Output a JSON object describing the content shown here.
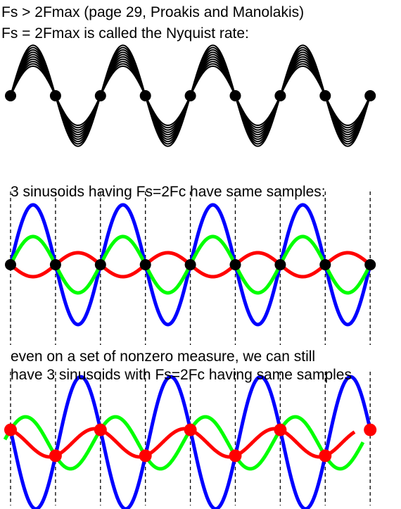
{
  "text": {
    "line1": "Fs > 2Fmax (page 29, Proakis and Manolakis)",
    "line2": "Fs = 2Fmax is called the Nyquist rate:",
    "caption2": "3 sinusoids having Fs=2Fc have same samples:",
    "caption3a": "even on a set of nonzero measure, we can still",
    "caption3b": "have 3 sinusoids with Fs=2Fc having same samples"
  },
  "colors": {
    "black": "#000000",
    "blue": "#0000ff",
    "green": "#00ff00",
    "red": "#ff0000",
    "background": "#ffffff"
  },
  "panels": {
    "nyquist_family": {
      "curve_count": 10,
      "sample_count": 9
    },
    "same_samples": {
      "sinusoids": [
        "blue",
        "green",
        "red"
      ],
      "sample_count": 9,
      "sample_lines": "dashed"
    },
    "nonzero_measure": {
      "sinusoids": [
        "blue",
        "green",
        "red"
      ],
      "sample_count": 9,
      "sample_lines": "dashed"
    }
  }
}
